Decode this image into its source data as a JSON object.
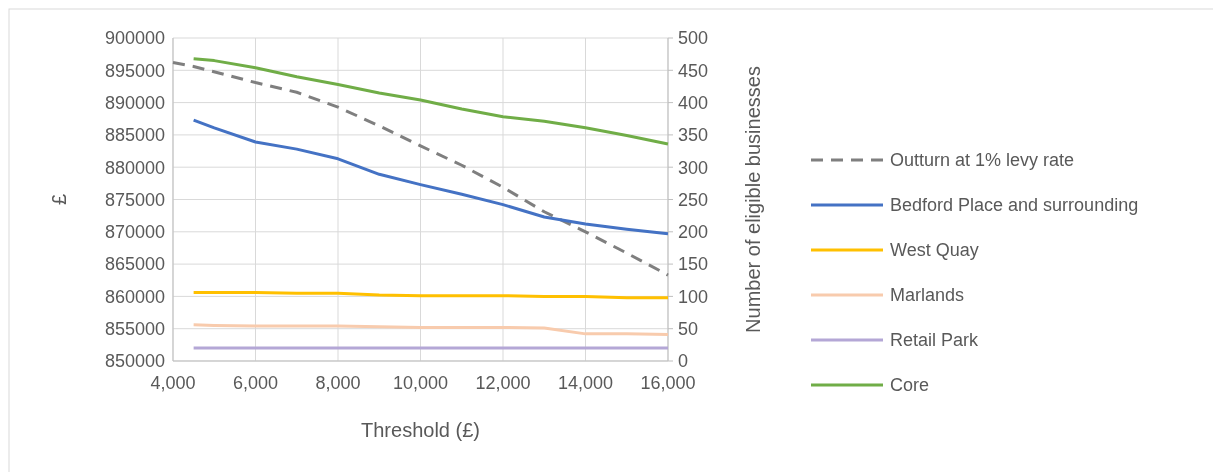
{
  "chart_data": {
    "type": "line",
    "xlabel": "Threshold (£)",
    "ylabel": "£",
    "y2label": "Number of eligible businesses",
    "xlim": [
      4000,
      16000
    ],
    "xticks": [
      {
        "value": 4000,
        "label": "4,000"
      },
      {
        "value": 6000,
        "label": "6,000"
      },
      {
        "value": 8000,
        "label": "8,000"
      },
      {
        "value": 10000,
        "label": "10,000"
      },
      {
        "value": 12000,
        "label": "12,000"
      },
      {
        "value": 14000,
        "label": "14,000"
      },
      {
        "value": 16000,
        "label": "16,000"
      }
    ],
    "ylim": [
      850000,
      900000
    ],
    "yticks": [
      850000,
      855000,
      860000,
      865000,
      870000,
      875000,
      880000,
      885000,
      890000,
      895000,
      900000
    ],
    "y2lim": [
      0,
      500
    ],
    "y2ticks": [
      0,
      50,
      100,
      150,
      200,
      250,
      300,
      350,
      400,
      450,
      500
    ],
    "grid": true,
    "legend": "right",
    "series": [
      {
        "name": "Outturn at 1% levy rate",
        "color": "#7f7f7f",
        "line_style": "dashed",
        "x": [
          4000,
          4500,
          6000,
          7000,
          8000,
          9000,
          10000,
          11000,
          12000,
          13000,
          14000,
          15000,
          16000
        ],
        "values": [
          896200,
          895600,
          893100,
          891600,
          889300,
          886400,
          883300,
          880300,
          876900,
          873100,
          870000,
          866700,
          863300
        ]
      },
      {
        "name": "Bedford Place and surrounding",
        "color": "#4472c4",
        "axis": "y2",
        "x": [
          4500,
          5000,
          6000,
          7000,
          8000,
          9000,
          10000,
          11000,
          12000,
          13000,
          14000,
          15000,
          16000
        ],
        "values": [
          373,
          361,
          339,
          328,
          313,
          289,
          273,
          258,
          242,
          223,
          212,
          204,
          197
        ]
      },
      {
        "name": "West Quay",
        "color": "#ffc000",
        "axis": "y2",
        "x": [
          4500,
          5000,
          6000,
          7000,
          8000,
          9000,
          10000,
          11000,
          12000,
          13000,
          14000,
          15000,
          16000
        ],
        "values": [
          106,
          106,
          106,
          105,
          105,
          102,
          101,
          101,
          101,
          100,
          100,
          98,
          98
        ]
      },
      {
        "name": "Marlands",
        "color": "#f8cbad",
        "axis": "y2",
        "x": [
          4500,
          5000,
          6000,
          7000,
          8000,
          9000,
          10000,
          11000,
          12000,
          13000,
          14000,
          15000,
          16000
        ],
        "values": [
          56,
          55,
          54,
          54,
          54,
          53,
          52,
          52,
          52,
          51,
          42,
          42,
          41
        ]
      },
      {
        "name": "Retail Park",
        "color": "#b4a7d6",
        "axis": "y2",
        "x": [
          4500,
          5000,
          6000,
          7000,
          8000,
          9000,
          10000,
          11000,
          12000,
          13000,
          14000,
          15000,
          16000
        ],
        "values": [
          20,
          20,
          20,
          20,
          20,
          20,
          20,
          20,
          20,
          20,
          20,
          20,
          20
        ]
      },
      {
        "name": "Core",
        "color": "#70ad47",
        "axis": "y2",
        "x": [
          4500,
          5000,
          6000,
          7000,
          8000,
          9000,
          10000,
          11000,
          12000,
          13000,
          14000,
          15000,
          16000
        ],
        "values": [
          468,
          465,
          454,
          440,
          428,
          415,
          404,
          390,
          378,
          371,
          361,
          349,
          336
        ]
      }
    ]
  }
}
